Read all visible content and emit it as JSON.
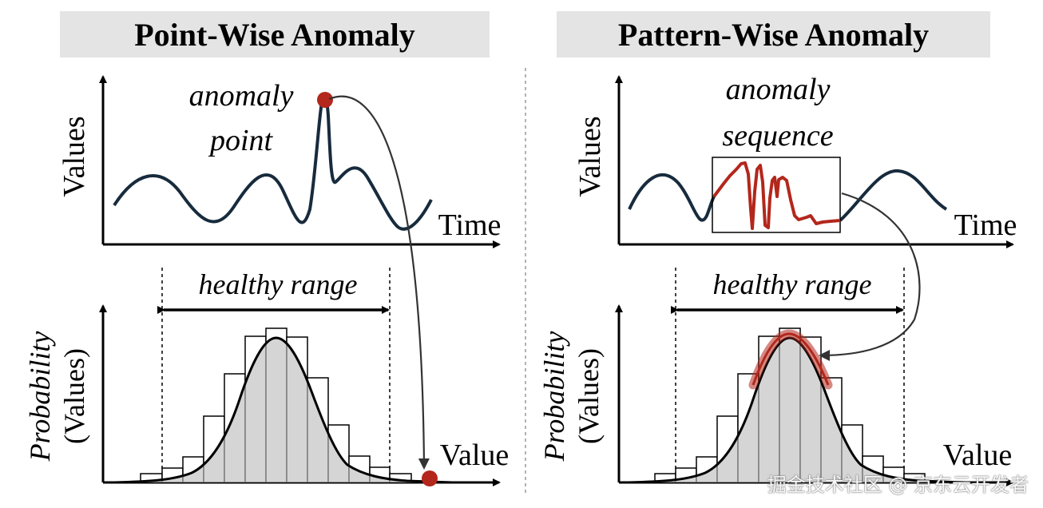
{
  "panels": {
    "left": {
      "title": "Point-Wise Anomaly",
      "anomaly_label_line1": "anomaly",
      "anomaly_label_line2": "point",
      "y_axis_top": "Values",
      "x_axis_top": "Time",
      "range_label": "healthy range",
      "y_axis_bottom_line1": "Probability",
      "y_axis_bottom_line2": "(Values)",
      "x_axis_bottom": "Value"
    },
    "right": {
      "title": "Pattern-Wise Anomaly",
      "anomaly_label_line1": "anomaly",
      "anomaly_label_line2": "sequence",
      "y_axis_top": "Values",
      "x_axis_top": "Time",
      "range_label": "healthy range",
      "y_axis_bottom_line1": "Probability",
      "y_axis_bottom_line2": "(Values)",
      "x_axis_bottom": "Value"
    }
  },
  "watermark": "掘金技术社区 @ 京东云开发者",
  "colors": {
    "signal": "#172b3d",
    "anomaly": "#b3271c",
    "anomaly_glow": "#d38a86",
    "histogram_fill": "#d3d3d3",
    "title_background": "#e4e4e4"
  }
}
